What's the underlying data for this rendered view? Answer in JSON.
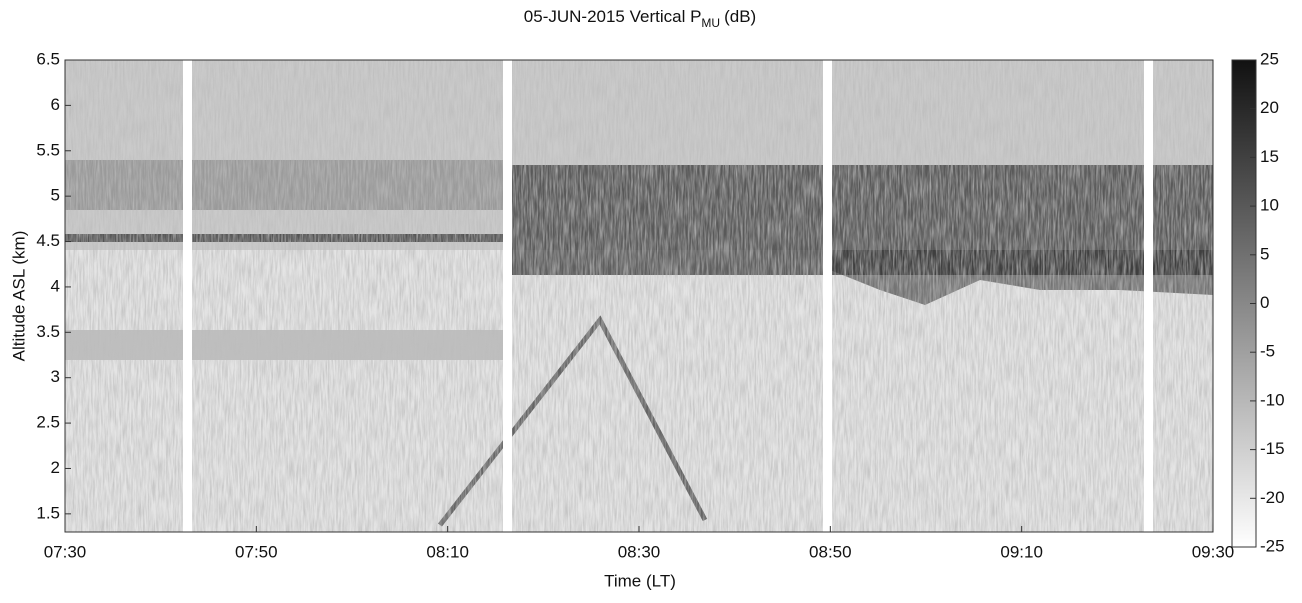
{
  "chart_data": {
    "type": "heatmap",
    "title": "05-JUN-2015 Vertical P",
    "title_subscript": "MU",
    "title_suffix": "(dB)",
    "x_label": "Time (LT)",
    "y_label": "Altitude ASL (km)",
    "xticks": [
      "07:30",
      "07:50",
      "08:10",
      "08:30",
      "08:50",
      "09:10",
      "09:30"
    ],
    "ylim": [
      1.3,
      6.5
    ],
    "yticks": [
      1.5,
      2,
      2.5,
      3,
      3.5,
      4,
      4.5,
      5,
      5.5,
      6,
      6.5
    ],
    "colorbar": {
      "clim": [
        -25,
        25
      ],
      "ticks": [
        -25,
        -20,
        -15,
        -10,
        -5,
        0,
        5,
        10,
        15,
        20,
        25
      ],
      "colors": [
        "#ffffff",
        "#111111"
      ]
    }
  }
}
